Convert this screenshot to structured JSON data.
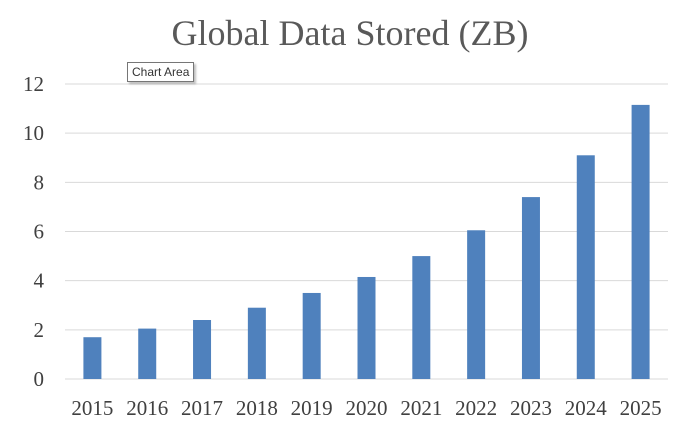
{
  "chart_data": {
    "type": "bar",
    "title": "Global Data Stored (ZB)",
    "xlabel": "",
    "ylabel": "",
    "categories": [
      "2015",
      "2016",
      "2017",
      "2018",
      "2019",
      "2020",
      "2021",
      "2022",
      "2023",
      "2024",
      "2025"
    ],
    "values": [
      1.7,
      2.05,
      2.4,
      2.9,
      3.5,
      4.15,
      5.0,
      6.05,
      7.4,
      9.1,
      11.15
    ],
    "ylim": [
      0,
      12
    ],
    "yticks": [
      "0",
      "2",
      "4",
      "6",
      "8",
      "10",
      "12"
    ],
    "grid": true,
    "legend": "none",
    "bar_color": "#4f81bd"
  },
  "tooltip": {
    "text": "Chart Area"
  }
}
